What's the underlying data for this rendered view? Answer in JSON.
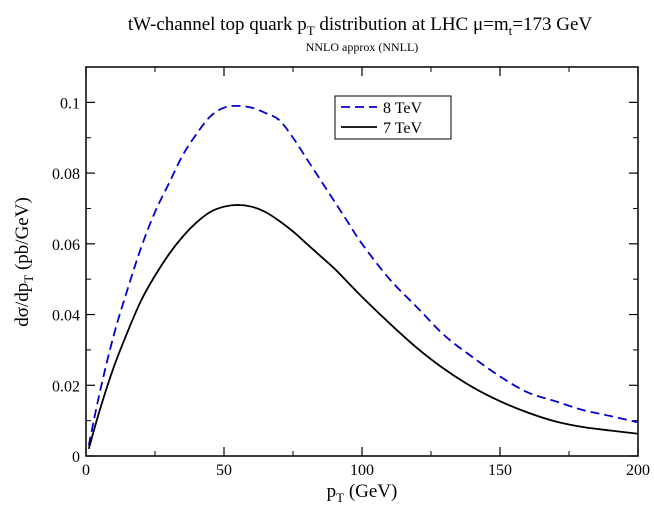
{
  "chart_data": {
    "type": "line",
    "title": {
      "prefix": "tW-channel  top quark p",
      "sub": "T",
      "middle": " distribution at LHC   μ=m",
      "sub2": "t",
      "suffix": "=173 GeV"
    },
    "subtitle": "NNLO approx (NNLL)",
    "xlabel": {
      "main": "p",
      "sub": "T",
      "rest": " (GeV)"
    },
    "ylabel": {
      "main": "dσ/dp",
      "sub": "T",
      "rest": " (pb/GeV)"
    },
    "xlim": [
      0,
      200
    ],
    "ylim": [
      0,
      0.11
    ],
    "xticks": [
      0,
      50,
      100,
      150,
      200
    ],
    "xtick_labels": [
      "0",
      "50",
      "100",
      "150",
      "200"
    ],
    "yticks": [
      0,
      0.02,
      0.04,
      0.06,
      0.08,
      0.1
    ],
    "ytick_labels": [
      "0",
      "0.02",
      "0.04",
      "0.06",
      "0.08",
      "0.1"
    ],
    "grid": false,
    "legend_position": "top-right",
    "series": [
      {
        "name": "8 TeV",
        "color": "#0000cc",
        "dash": "dashed",
        "x": [
          1,
          5,
          10,
          15,
          20,
          25,
          30,
          35,
          40,
          45,
          50,
          55,
          60,
          65,
          70,
          75,
          80,
          85,
          90,
          95,
          100,
          110,
          120,
          130,
          140,
          150,
          160,
          170,
          180,
          190,
          200
        ],
        "y": [
          0.003,
          0.018,
          0.034,
          0.047,
          0.059,
          0.069,
          0.077,
          0.085,
          0.091,
          0.096,
          0.0985,
          0.099,
          0.0985,
          0.097,
          0.095,
          0.09,
          0.084,
          0.078,
          0.072,
          0.066,
          0.06,
          0.05,
          0.042,
          0.034,
          0.028,
          0.0225,
          0.018,
          0.0155,
          0.013,
          0.0113,
          0.0095
        ]
      },
      {
        "name": "7 TeV",
        "color": "#000000",
        "dash": "solid",
        "x": [
          1,
          5,
          10,
          15,
          20,
          25,
          30,
          35,
          40,
          45,
          50,
          55,
          60,
          65,
          70,
          75,
          80,
          85,
          90,
          95,
          100,
          110,
          120,
          130,
          140,
          150,
          160,
          170,
          180,
          190,
          200
        ],
        "y": [
          0.002,
          0.013,
          0.025,
          0.035,
          0.044,
          0.051,
          0.057,
          0.062,
          0.066,
          0.069,
          0.0705,
          0.071,
          0.0705,
          0.069,
          0.0665,
          0.0635,
          0.06,
          0.0565,
          0.053,
          0.049,
          0.045,
          0.0375,
          0.0305,
          0.0245,
          0.0195,
          0.0155,
          0.0123,
          0.0098,
          0.0082,
          0.0072,
          0.0063
        ]
      }
    ]
  }
}
